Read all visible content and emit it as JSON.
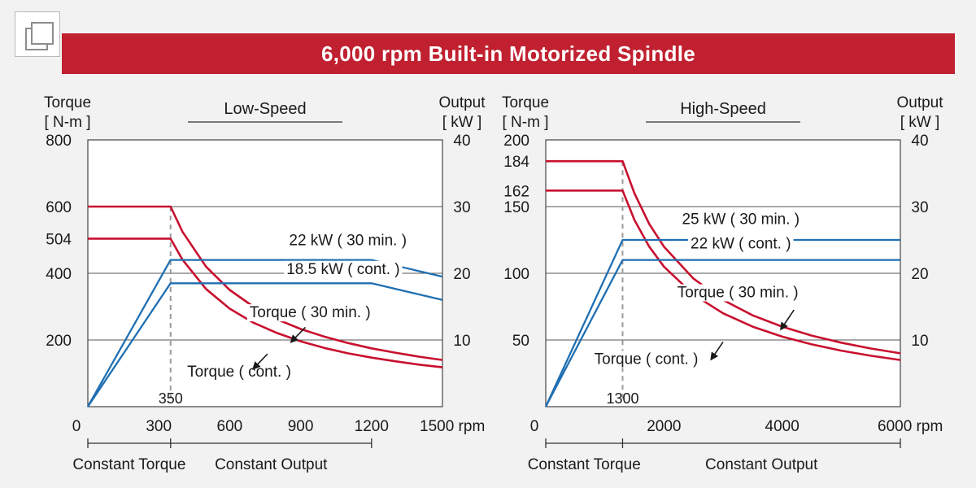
{
  "title": "6,000 rpm Built-in Motorized Spindle",
  "colors": {
    "title_bar": "#c0202f",
    "torque": "#c8102e",
    "output": "#1f6fb2",
    "grid": "#444444"
  },
  "chart_data": [
    {
      "type": "line",
      "title": "Low-Speed",
      "ylabel_left": [
        "Torque",
        "[ N-m ]"
      ],
      "ylabel_right": [
        "Output",
        "[ kW ]"
      ],
      "x_unit": "rpm",
      "xlim": [
        0,
        1500
      ],
      "ylim_left": [
        0,
        800
      ],
      "ylim_right": [
        0,
        40
      ],
      "x_ticks": [
        "0",
        "300",
        "600",
        "900",
        "1200",
        "1500"
      ],
      "x_tick_values": [
        0,
        300,
        600,
        900,
        1200,
        1500
      ],
      "y_ticks_left": [
        "200",
        "400",
        "504",
        "600",
        "800"
      ],
      "y_tick_values_left": [
        200,
        400,
        504,
        600,
        800
      ],
      "y_ticks_right": [
        "10",
        "20",
        "30",
        "40"
      ],
      "y_tick_values_right": [
        10,
        20,
        30,
        40
      ],
      "gridlines_left": [
        200,
        400,
        600
      ],
      "base_speed": 350,
      "base_speed_label": "350",
      "series": [
        {
          "name": "Torque ( 30 min. )",
          "axis": "left",
          "kind": "torque",
          "points": [
            [
              0,
              600
            ],
            [
              350,
              600
            ],
            [
              400,
              525
            ],
            [
              500,
              420
            ],
            [
              600,
              350
            ],
            [
              700,
              300
            ],
            [
              800,
              262
            ],
            [
              900,
              233
            ],
            [
              1000,
              210
            ],
            [
              1100,
              191
            ],
            [
              1200,
              175
            ],
            [
              1300,
              162
            ],
            [
              1400,
              150
            ],
            [
              1500,
              140
            ]
          ]
        },
        {
          "name": "Torque ( cont. )",
          "axis": "left",
          "kind": "torque",
          "points": [
            [
              0,
              504
            ],
            [
              350,
              504
            ],
            [
              400,
              441
            ],
            [
              500,
              353
            ],
            [
              600,
              294
            ],
            [
              700,
              252
            ],
            [
              800,
              221
            ],
            [
              900,
              196
            ],
            [
              1000,
              176
            ],
            [
              1100,
              160
            ],
            [
              1200,
              147
            ],
            [
              1300,
              136
            ],
            [
              1400,
              126
            ],
            [
              1500,
              118
            ]
          ]
        },
        {
          "name": "22 kW ( 30 min. )",
          "axis": "right",
          "kind": "output",
          "points": [
            [
              0,
              0
            ],
            [
              350,
              22
            ],
            [
              1200,
              22
            ],
            [
              1500,
              19.5
            ]
          ]
        },
        {
          "name": "18.5 kW ( cont. )",
          "axis": "right",
          "kind": "output",
          "points": [
            [
              0,
              0
            ],
            [
              350,
              18.5
            ],
            [
              1200,
              18.5
            ],
            [
              1500,
              16
            ]
          ]
        }
      ],
      "annotations": [
        {
          "text": "22 kW ( 30 min. )",
          "x": 1100,
          "y": 24.2
        },
        {
          "text": "18.5 kW ( cont. )",
          "x": 1080,
          "y": 19.9
        },
        {
          "text": "Torque ( 30 min. )",
          "x": 940,
          "y": 13.4
        },
        {
          "text": "Torque ( cont. )",
          "x": 640,
          "y": 4.5
        }
      ],
      "arrows": [
        {
          "from": [
            920,
            11.9
          ],
          "to": [
            860,
            9.7
          ]
        },
        {
          "from": [
            760,
            7.9
          ],
          "to": [
            700,
            5.7
          ]
        }
      ],
      "regions": [
        {
          "label": "Constant Torque",
          "from": 0,
          "to": 350
        },
        {
          "label": "Constant Output",
          "from": 350,
          "to": 1200
        }
      ]
    },
    {
      "type": "line",
      "title": "High-Speed",
      "ylabel_left": [
        "Torque",
        "[ N-m ]"
      ],
      "ylabel_right": [
        "Output",
        "[ kW ]"
      ],
      "x_unit": "rpm",
      "xlim": [
        0,
        6000
      ],
      "ylim_left": [
        0,
        200
      ],
      "ylim_right": [
        0,
        40
      ],
      "x_ticks": [
        "0",
        "2000",
        "4000",
        "6000"
      ],
      "x_tick_values": [
        0,
        2000,
        4000,
        6000
      ],
      "y_ticks_left": [
        "50",
        "100",
        "150",
        "162",
        "184",
        "200"
      ],
      "y_tick_values_left": [
        50,
        100,
        150,
        162,
        184,
        200
      ],
      "y_ticks_right": [
        "10",
        "20",
        "30",
        "40"
      ],
      "y_tick_values_right": [
        10,
        20,
        30,
        40
      ],
      "gridlines_left": [
        50,
        100,
        150
      ],
      "base_speed": 1300,
      "base_speed_label": "1300",
      "series": [
        {
          "name": "Torque ( 30 min. )",
          "axis": "left",
          "kind": "torque",
          "points": [
            [
              0,
              184
            ],
            [
              1300,
              184
            ],
            [
              1500,
              160
            ],
            [
              1750,
              137
            ],
            [
              2000,
              120
            ],
            [
              2500,
              96
            ],
            [
              3000,
              80
            ],
            [
              3500,
              68.5
            ],
            [
              4000,
              60
            ],
            [
              4500,
              53.3
            ],
            [
              5000,
              48
            ],
            [
              5500,
              43.6
            ],
            [
              6000,
              40
            ]
          ]
        },
        {
          "name": "Torque ( cont. )",
          "axis": "left",
          "kind": "torque",
          "points": [
            [
              0,
              162
            ],
            [
              1300,
              162
            ],
            [
              1500,
              140
            ],
            [
              1750,
              120
            ],
            [
              2000,
              105
            ],
            [
              2500,
              84
            ],
            [
              3000,
              70
            ],
            [
              3500,
              60
            ],
            [
              4000,
              52.5
            ],
            [
              4500,
              46.7
            ],
            [
              5000,
              42
            ],
            [
              5500,
              38.2
            ],
            [
              6000,
              35
            ]
          ]
        },
        {
          "name": "25 kW ( 30 min. )",
          "axis": "right",
          "kind": "output",
          "points": [
            [
              0,
              0
            ],
            [
              1300,
              25
            ],
            [
              6000,
              25
            ]
          ]
        },
        {
          "name": "22 kW ( cont. )",
          "axis": "right",
          "kind": "output",
          "points": [
            [
              0,
              0
            ],
            [
              1300,
              22
            ],
            [
              6000,
              22
            ]
          ]
        }
      ],
      "annotations": [
        {
          "text": "25 kW ( 30 min. )",
          "x": 3300,
          "y": 27.4
        },
        {
          "text": "22 kW ( cont. )",
          "x": 3300,
          "y": 23.7
        },
        {
          "text": "Torque ( 30 min. )",
          "x": 3250,
          "y": 16.4
        },
        {
          "text": "Torque ( cont. )",
          "x": 1700,
          "y": 6.4
        }
      ],
      "arrows": [
        {
          "from": [
            4200,
            14.5
          ],
          "to": [
            3980,
            11.6
          ]
        },
        {
          "from": [
            3000,
            9.7
          ],
          "to": [
            2800,
            7.1
          ]
        }
      ],
      "regions": [
        {
          "label": "Constant Torque",
          "from": 0,
          "to": 1300
        },
        {
          "label": "Constant Output",
          "from": 1300,
          "to": 6000
        }
      ]
    }
  ]
}
